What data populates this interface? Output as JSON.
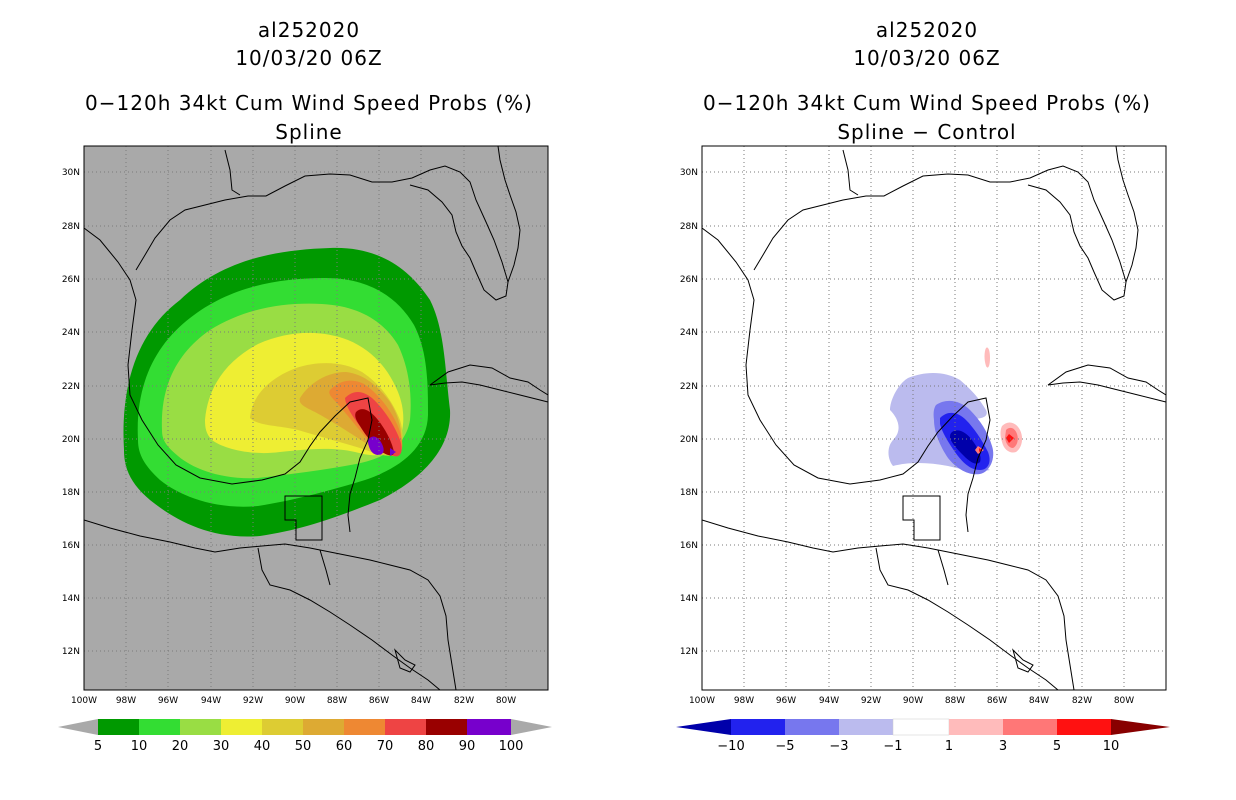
{
  "colors": {
    "left_background": "#a9a9a9",
    "right_background": "#ffffff",
    "probability_levels": [
      "#009900",
      "#33dd33",
      "#99dd44",
      "#eeee33",
      "#ddcc33",
      "#ddaa33",
      "#ee8833",
      "#ee4444",
      "#990000",
      "#7700cc"
    ],
    "difference_levels": [
      "#0000aa",
      "#2222ee",
      "#7777ee",
      "#bbbbee",
      "#ffffff",
      "#ffbbbb",
      "#ff7777",
      "#ff1111",
      "#880000"
    ]
  },
  "left_panel": {
    "storm_id": "al252020",
    "datetime": "10/03/20 06Z",
    "product": "0−120h 34kt Cum Wind Speed Probs (%)",
    "method": "Spline",
    "lat_labels": [
      "30N",
      "28N",
      "26N",
      "24N",
      "22N",
      "20N",
      "18N",
      "16N",
      "14N",
      "12N"
    ],
    "lon_labels": [
      "100W",
      "98W",
      "96W",
      "94W",
      "92W",
      "90W",
      "88W",
      "86W",
      "84W",
      "82W",
      "80W"
    ],
    "colorbar_labels": [
      "5",
      "10",
      "20",
      "30",
      "40",
      "50",
      "60",
      "70",
      "80",
      "90",
      "100"
    ]
  },
  "right_panel": {
    "storm_id": "al252020",
    "datetime": "10/03/20 06Z",
    "product": "0−120h 34kt Cum Wind Speed Probs (%)",
    "method": "Spline − Control",
    "lat_labels": [
      "30N",
      "28N",
      "26N",
      "24N",
      "22N",
      "20N",
      "18N",
      "16N",
      "14N",
      "12N"
    ],
    "lon_labels": [
      "100W",
      "98W",
      "96W",
      "94W",
      "92W",
      "90W",
      "88W",
      "86W",
      "84W",
      "82W",
      "80W"
    ],
    "colorbar_labels": [
      "−10",
      "−5",
      "−3",
      "−1",
      "1",
      "3",
      "5",
      "10"
    ]
  }
}
